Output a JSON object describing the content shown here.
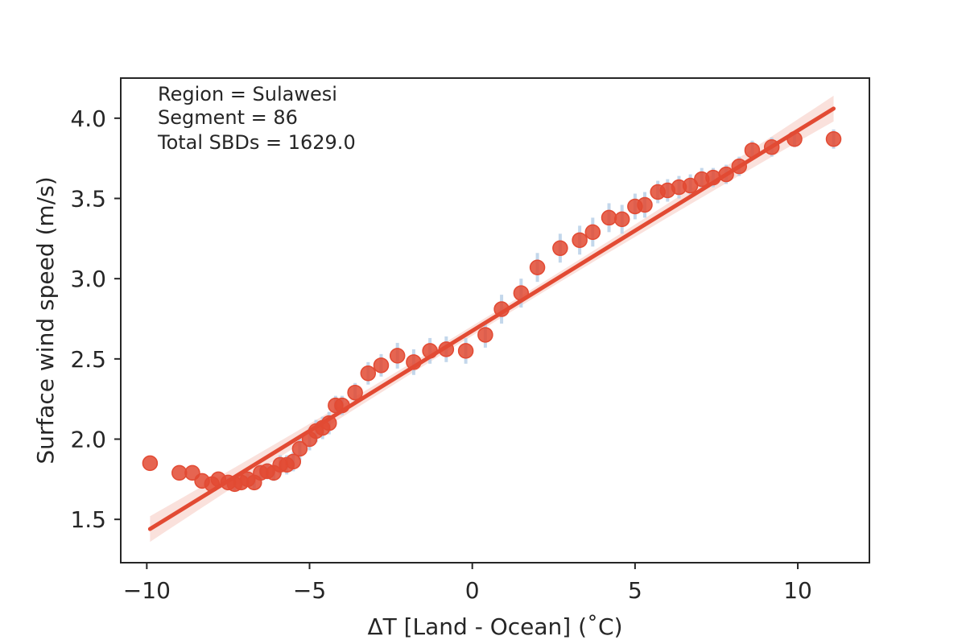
{
  "chart_data": {
    "type": "scatter",
    "xlabel": "ΔT [Land - Ocean] (˚C)",
    "ylabel": "Surface wind speed (m/s)",
    "xlim": [
      -10.8,
      12.2
    ],
    "ylim": [
      1.23,
      4.25
    ],
    "xticks": [
      -10,
      -5,
      0,
      5,
      10
    ],
    "xtick_labels": [
      "−10",
      "−5",
      "0",
      "5",
      "10"
    ],
    "yticks": [
      1.5,
      2.0,
      2.5,
      3.0,
      3.5,
      4.0
    ],
    "ytick_labels": [
      "1.5",
      "2.0",
      "2.5",
      "3.0",
      "3.5",
      "4.0"
    ],
    "annotations": [
      "Region = Sulawesi",
      "Segment = 86",
      "Total SBDs = 1629.0"
    ],
    "grid": false,
    "colors": {
      "points": "#e24a33",
      "line": "#e24a33",
      "band": "#f6c9c0",
      "errorbars": "#b8d0e8",
      "axes": "#262626"
    },
    "points": {
      "x": [
        -9.9,
        -9.0,
        -8.6,
        -8.3,
        -8.0,
        -7.8,
        -7.5,
        -7.3,
        -7.1,
        -6.9,
        -6.7,
        -6.5,
        -6.3,
        -6.1,
        -5.9,
        -5.7,
        -5.5,
        -5.3,
        -5.0,
        -4.8,
        -4.6,
        -4.4,
        -4.2,
        -4.0,
        -3.6,
        -3.2,
        -2.8,
        -2.3,
        -1.8,
        -1.3,
        -0.8,
        -0.2,
        0.4,
        0.9,
        1.5,
        2.0,
        2.7,
        3.3,
        3.7,
        4.2,
        4.6,
        5.0,
        5.3,
        5.7,
        6.0,
        6.35,
        6.7,
        7.05,
        7.4,
        7.8,
        8.2,
        8.6,
        9.2,
        9.9,
        11.1
      ],
      "y": [
        1.85,
        1.79,
        1.79,
        1.74,
        1.72,
        1.75,
        1.73,
        1.72,
        1.73,
        1.75,
        1.73,
        1.79,
        1.8,
        1.79,
        1.84,
        1.84,
        1.86,
        1.94,
        2.0,
        2.05,
        2.07,
        2.1,
        2.21,
        2.21,
        2.29,
        2.41,
        2.46,
        2.52,
        2.48,
        2.55,
        2.56,
        2.55,
        2.65,
        2.81,
        2.91,
        3.07,
        3.19,
        3.24,
        3.29,
        3.38,
        3.37,
        3.45,
        3.46,
        3.54,
        3.55,
        3.57,
        3.58,
        3.62,
        3.63,
        3.65,
        3.7,
        3.8,
        3.82,
        3.87,
        3.87
      ],
      "yerr": [
        0.0,
        0.0,
        0.0,
        0.0,
        0.0,
        0.0,
        0.03,
        0.04,
        0.04,
        0.04,
        0.04,
        0.05,
        0.05,
        0.05,
        0.06,
        0.06,
        0.06,
        0.07,
        0.07,
        0.07,
        0.07,
        0.07,
        0.06,
        0.06,
        0.06,
        0.07,
        0.07,
        0.08,
        0.08,
        0.08,
        0.08,
        0.08,
        0.08,
        0.09,
        0.09,
        0.09,
        0.09,
        0.09,
        0.09,
        0.09,
        0.09,
        0.08,
        0.08,
        0.07,
        0.07,
        0.07,
        0.07,
        0.07,
        0.06,
        0.06,
        0.06,
        0.06,
        0.06,
        0.05,
        0.06
      ]
    },
    "regression": {
      "x": [
        -9.9,
        11.1
      ],
      "y": [
        1.44,
        4.06
      ],
      "ci_start": 0.08,
      "ci_mid": 0.03,
      "ci_end": 0.08
    }
  }
}
